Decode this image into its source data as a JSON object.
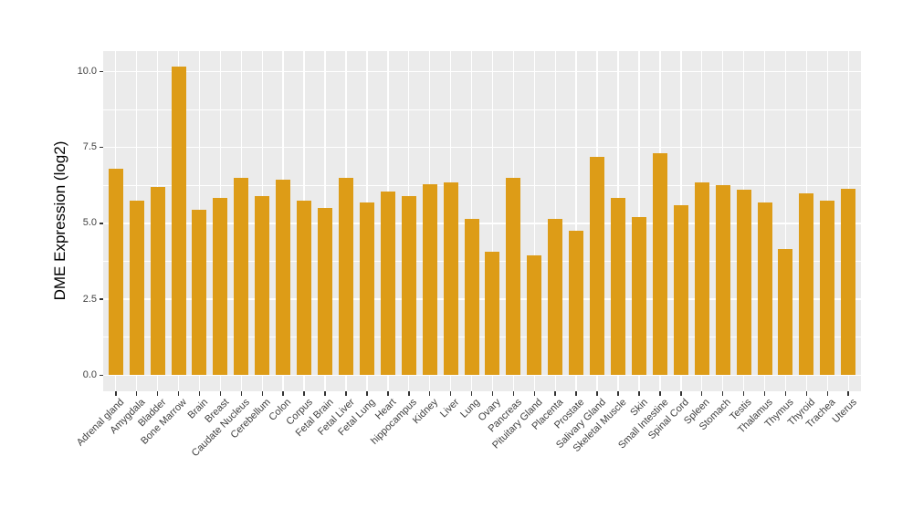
{
  "chart_data": {
    "type": "bar",
    "title": "",
    "xlabel": "",
    "ylabel": "DME Expression (log2)",
    "categories": [
      "Adrenal gland",
      "Amygdala",
      "Bladder",
      "Bone Marrow",
      "Brain",
      "Breast",
      "Caudate Nucleus",
      "Cerebellum",
      "Colon",
      "Corpus",
      "Fetal Brain",
      "Fetal Liver",
      "Fetal Lung",
      "Heart",
      "hippocampus",
      "Kidney",
      "Liver",
      "Lung",
      "Ovary",
      "Pancreas",
      "Pituitary Gland",
      "Placenta",
      "Prostate",
      "Salivary Gland",
      "Skeletal Muscle",
      "Skin",
      "Small Intestine",
      "Spinal Cord",
      "Spleen",
      "Stomach",
      "Testis",
      "Thalamus",
      "Thymus",
      "Thyroid",
      "Trachea",
      "Uterus"
    ],
    "values": [
      6.8,
      5.75,
      6.2,
      10.15,
      5.45,
      5.85,
      6.5,
      5.9,
      6.45,
      5.75,
      5.5,
      6.5,
      5.7,
      6.05,
      5.9,
      6.3,
      6.35,
      5.15,
      4.05,
      6.5,
      3.95,
      5.15,
      4.75,
      7.2,
      5.85,
      5.2,
      7.3,
      5.6,
      6.35,
      6.25,
      6.1,
      5.7,
      4.15,
      6.0,
      5.75,
      6.15
    ],
    "yticks": [
      0,
      2.5,
      5,
      7.5,
      10
    ],
    "ytick_labels": [
      "0.0",
      "2.5",
      "5.0",
      "7.5",
      "10.0"
    ],
    "ylim": [
      -0.53,
      10.67
    ],
    "grid": true,
    "legend": "none",
    "colors": {
      "bar_fill": "#DD9C17",
      "panel_background": "#EBEBEB",
      "gridline": "#FFFFFF",
      "tick_mark": "#333333",
      "axis_text": "#404040",
      "axis_title": "#000000",
      "figure_background": "#FFFFFF"
    }
  }
}
